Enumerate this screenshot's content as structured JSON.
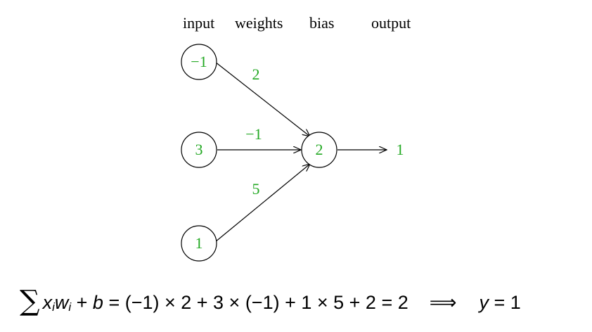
{
  "headers": {
    "input": "input",
    "weights": "weights",
    "bias": "bias",
    "output": "output"
  },
  "inputs": [
    "−1",
    "3",
    "1"
  ],
  "weights": [
    "2",
    "−1",
    "5"
  ],
  "bias": "2",
  "output": "1",
  "formula": {
    "sigma": "∑",
    "x": "x",
    "i1": "i",
    "w": "w",
    "i2": "i",
    "plus_b": " + ",
    "b": "b",
    "rhs": " = (−1) × 2 + 3 × (−1) + 1 × 5 + 2 = 2",
    "implies": "⟹",
    "y": "y",
    "result": " = 1"
  },
  "colors": {
    "value_text": "#22a822",
    "lines": "#000000"
  }
}
